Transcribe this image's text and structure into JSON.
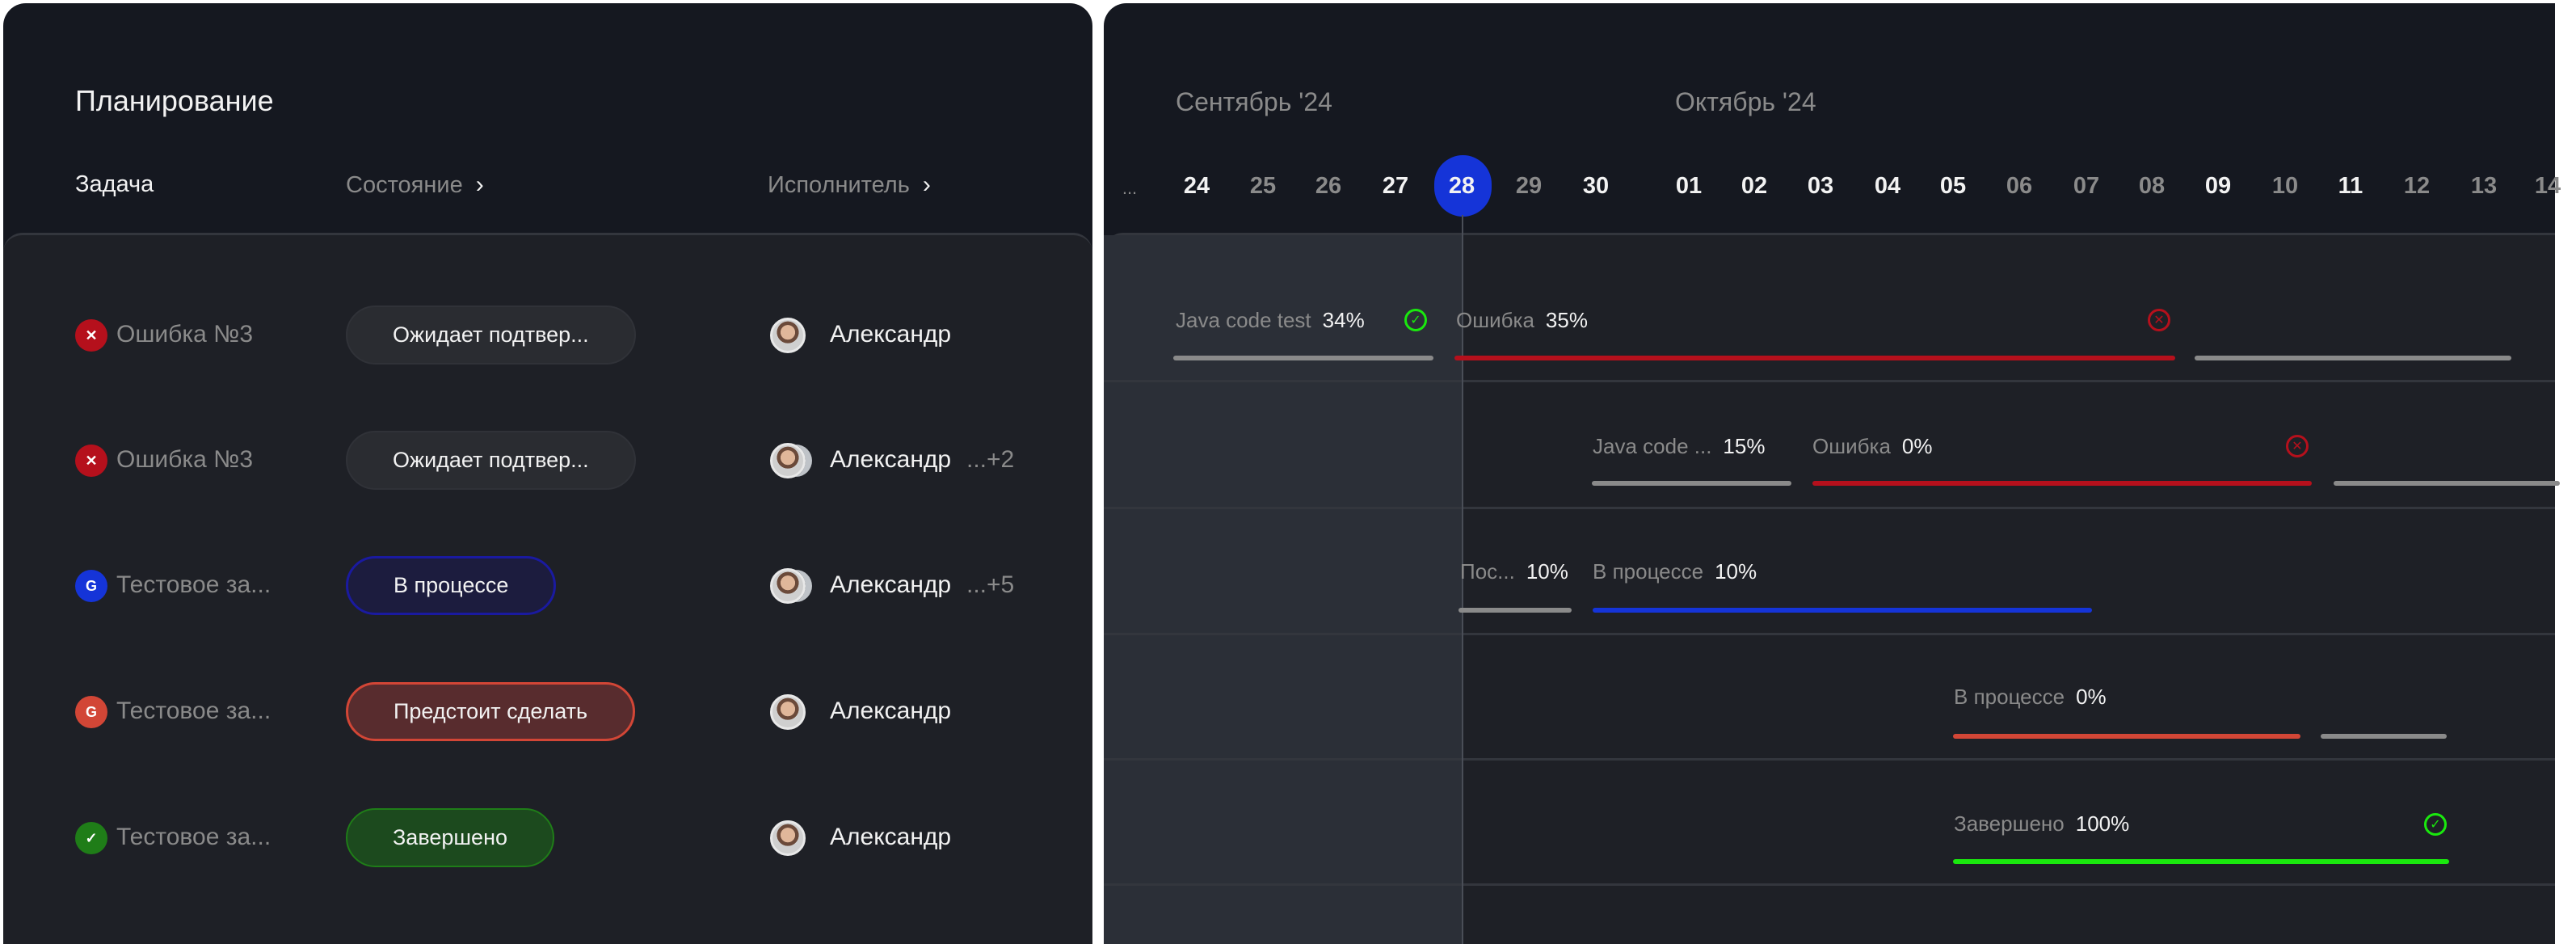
{
  "left": {
    "title": "Планирование",
    "columns": [
      "Задача",
      "Состояние",
      "Исполнитель"
    ],
    "rows": [
      {
        "icon": "x",
        "task": "Ошибка №3",
        "status": "Ожидает подтвер...",
        "assignee": "Александр",
        "extra": ""
      },
      {
        "icon": "x",
        "task": "Ошибка №3",
        "status": "Ожидает подтвер...",
        "assignee": "Александр",
        "extra": "...+2"
      },
      {
        "icon": "G",
        "task": "Тестовое за...",
        "status": "В процессе",
        "assignee": "Александр",
        "extra": "...+5"
      },
      {
        "icon": "G",
        "task": "Тестовое за...",
        "status": "Предстоит сделать",
        "assignee": "Александр",
        "extra": ""
      },
      {
        "icon": "✓",
        "task": "Тестовое за...",
        "status": "Завершено",
        "assignee": "Александр",
        "extra": ""
      }
    ]
  },
  "timeline": {
    "months": [
      "Сентябрь  '24",
      "Октябрь  '24"
    ],
    "days": [
      "...",
      "24",
      "25",
      "26",
      "27",
      "28",
      "29",
      "30",
      "01",
      "02",
      "03",
      "04",
      "05",
      "06",
      "07",
      "08",
      "09",
      "10",
      "11",
      "12",
      "13",
      "14"
    ],
    "today": "28",
    "tasks": [
      {
        "name": "Java code test",
        "pct": "34%",
        "name2": "Ошибка",
        "pct2": "35%"
      },
      {
        "name": "Java code ...",
        "pct": "15%",
        "name2": "Ошибка",
        "pct2": "0%"
      },
      {
        "name": "Пос...",
        "pct": "10%",
        "name2": "В процессе",
        "pct2": "10%"
      },
      {
        "name": "В процессе",
        "pct": "0%"
      },
      {
        "name": "Завершено",
        "pct": "100%"
      }
    ]
  },
  "colors": {
    "error": "#b5101c",
    "progress": "#1534d8",
    "todo": "#d24636",
    "done": "#1ae80e",
    "neutral": "#8a8a8a"
  }
}
